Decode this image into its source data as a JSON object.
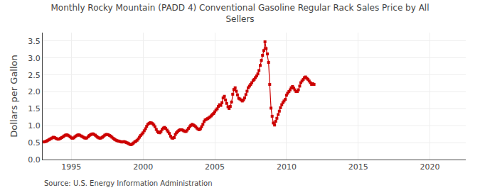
{
  "chart_data": {
    "type": "line",
    "title": "Monthly Rocky Mountain (PADD 4) Conventional Gasoline Regular Rack Sales Price by All\nSellers",
    "ylabel": "Dollars per Gallon",
    "annotations": [
      "Source: U.S. Energy Information Administration"
    ],
    "color": "#cc0000",
    "marker": "square",
    "grid": true,
    "xlim": [
      1993.0,
      2022.5
    ],
    "xticks": [
      1995,
      2000,
      2005,
      2010,
      2015,
      2020
    ],
    "ylim": [
      0.0,
      3.75
    ],
    "yticks": [
      {
        "value": 0.0,
        "label": "0.0"
      },
      0.5,
      {
        "value": 1.0,
        "label": "1.0"
      },
      1.5,
      {
        "value": 2.0,
        "label": "2.0"
      },
      2.5,
      {
        "value": 3.0,
        "label": "3.0"
      },
      3.5
    ],
    "x": [
      1993.08,
      1993.17,
      1993.25,
      1993.33,
      1993.42,
      1993.5,
      1993.58,
      1993.67,
      1993.75,
      1993.83,
      1993.92,
      1994.0,
      1994.08,
      1994.17,
      1994.25,
      1994.33,
      1994.42,
      1994.5,
      1994.58,
      1994.67,
      1994.75,
      1994.83,
      1994.92,
      1995.0,
      1995.08,
      1995.17,
      1995.25,
      1995.33,
      1995.42,
      1995.5,
      1995.58,
      1995.67,
      1995.75,
      1995.83,
      1995.92,
      1996.0,
      1996.08,
      1996.17,
      1996.25,
      1996.33,
      1996.42,
      1996.5,
      1996.58,
      1996.67,
      1996.75,
      1996.83,
      1996.92,
      1997.0,
      1997.08,
      1997.17,
      1997.25,
      1997.33,
      1997.42,
      1997.5,
      1997.58,
      1997.67,
      1997.75,
      1997.83,
      1997.92,
      1998.0,
      1998.08,
      1998.17,
      1998.25,
      1998.33,
      1998.42,
      1998.5,
      1998.58,
      1998.67,
      1998.75,
      1998.83,
      1998.92,
      1999.0,
      1999.08,
      1999.17,
      1999.25,
      1999.33,
      1999.42,
      1999.5,
      1999.58,
      1999.67,
      1999.75,
      1999.83,
      1999.92,
      2000.0,
      2000.08,
      2000.17,
      2000.25,
      2000.33,
      2000.42,
      2000.5,
      2000.58,
      2000.67,
      2000.75,
      2000.83,
      2000.92,
      2001.0,
      2001.08,
      2001.17,
      2001.25,
      2001.33,
      2001.42,
      2001.5,
      2001.58,
      2001.67,
      2001.75,
      2001.83,
      2001.92,
      2002.0,
      2002.08,
      2002.17,
      2002.25,
      2002.33,
      2002.42,
      2002.5,
      2002.58,
      2002.67,
      2002.75,
      2002.83,
      2002.92,
      2003.0,
      2003.08,
      2003.17,
      2003.25,
      2003.33,
      2003.42,
      2003.5,
      2003.58,
      2003.67,
      2003.75,
      2003.83,
      2003.92,
      2004.0,
      2004.08,
      2004.17,
      2004.25,
      2004.33,
      2004.42,
      2004.5,
      2004.58,
      2004.67,
      2004.75,
      2004.83,
      2004.92,
      2005.0,
      2005.08,
      2005.17,
      2005.25,
      2005.33,
      2005.42,
      2005.5,
      2005.58,
      2005.67,
      2005.75,
      2005.83,
      2005.92,
      2006.0,
      2006.08,
      2006.17,
      2006.25,
      2006.33,
      2006.42,
      2006.5,
      2006.58,
      2006.67,
      2006.75,
      2006.83,
      2006.92,
      2007.0,
      2007.08,
      2007.17,
      2007.25,
      2007.33,
      2007.42,
      2007.5,
      2007.58,
      2007.67,
      2007.75,
      2007.83,
      2007.92,
      2008.0,
      2008.08,
      2008.17,
      2008.25,
      2008.33,
      2008.42,
      2008.5,
      2008.58,
      2008.67,
      2008.75,
      2008.83,
      2008.92,
      2009.0,
      2009.08,
      2009.17,
      2009.25,
      2009.33,
      2009.42,
      2009.5,
      2009.58,
      2009.67,
      2009.75,
      2009.83,
      2009.92,
      2010.0,
      2010.08,
      2010.17,
      2010.25,
      2010.33,
      2010.42,
      2010.5,
      2010.58,
      2010.67,
      2010.75,
      2010.83,
      2010.92,
      2011.0,
      2011.08,
      2011.17,
      2011.25,
      2011.33,
      2011.42,
      2011.5,
      2011.58,
      2011.67,
      2011.75,
      2011.83,
      2011.92
    ],
    "values": [
      0.52,
      0.53,
      0.54,
      0.56,
      0.58,
      0.6,
      0.62,
      0.64,
      0.66,
      0.65,
      0.63,
      0.61,
      0.6,
      0.61,
      0.63,
      0.65,
      0.67,
      0.7,
      0.72,
      0.73,
      0.72,
      0.7,
      0.67,
      0.64,
      0.63,
      0.64,
      0.67,
      0.7,
      0.72,
      0.73,
      0.72,
      0.7,
      0.68,
      0.66,
      0.64,
      0.63,
      0.64,
      0.67,
      0.71,
      0.73,
      0.75,
      0.76,
      0.74,
      0.72,
      0.69,
      0.66,
      0.64,
      0.63,
      0.64,
      0.66,
      0.69,
      0.72,
      0.74,
      0.74,
      0.73,
      0.71,
      0.69,
      0.66,
      0.63,
      0.6,
      0.58,
      0.56,
      0.55,
      0.54,
      0.53,
      0.52,
      0.52,
      0.53,
      0.52,
      0.5,
      0.49,
      0.47,
      0.45,
      0.44,
      0.46,
      0.49,
      0.52,
      0.54,
      0.57,
      0.61,
      0.66,
      0.71,
      0.75,
      0.79,
      0.85,
      0.91,
      0.98,
      1.04,
      1.07,
      1.09,
      1.08,
      1.06,
      1.02,
      0.97,
      0.89,
      0.83,
      0.8,
      0.79,
      0.83,
      0.89,
      0.93,
      0.95,
      0.92,
      0.87,
      0.82,
      0.77,
      0.69,
      0.64,
      0.63,
      0.65,
      0.74,
      0.79,
      0.83,
      0.86,
      0.88,
      0.88,
      0.87,
      0.85,
      0.83,
      0.83,
      0.87,
      0.92,
      0.97,
      1.01,
      1.04,
      1.02,
      1.0,
      0.97,
      0.93,
      0.9,
      0.88,
      0.91,
      0.97,
      1.04,
      1.12,
      1.17,
      1.19,
      1.21,
      1.23,
      1.26,
      1.29,
      1.33,
      1.36,
      1.41,
      1.46,
      1.5,
      1.57,
      1.62,
      1.6,
      1.68,
      1.82,
      1.87,
      1.76,
      1.66,
      1.56,
      1.51,
      1.57,
      1.7,
      1.93,
      2.07,
      2.12,
      2.02,
      1.91,
      1.81,
      1.79,
      1.76,
      1.73,
      1.76,
      1.82,
      1.92,
      2.02,
      2.12,
      2.17,
      2.22,
      2.27,
      2.33,
      2.37,
      2.42,
      2.47,
      2.53,
      2.63,
      2.78,
      2.93,
      3.08,
      3.22,
      3.48,
      3.28,
      3.12,
      2.87,
      2.22,
      1.52,
      1.28,
      1.08,
      1.02,
      1.13,
      1.22,
      1.33,
      1.43,
      1.53,
      1.62,
      1.68,
      1.73,
      1.78,
      1.9,
      1.96,
      2.01,
      2.06,
      2.12,
      2.16,
      2.11,
      2.06,
      2.01,
      2.01,
      2.06,
      2.17,
      2.27,
      2.32,
      2.37,
      2.42,
      2.44,
      2.4,
      2.37,
      2.32,
      2.27,
      2.22,
      2.24,
      2.22
    ]
  }
}
